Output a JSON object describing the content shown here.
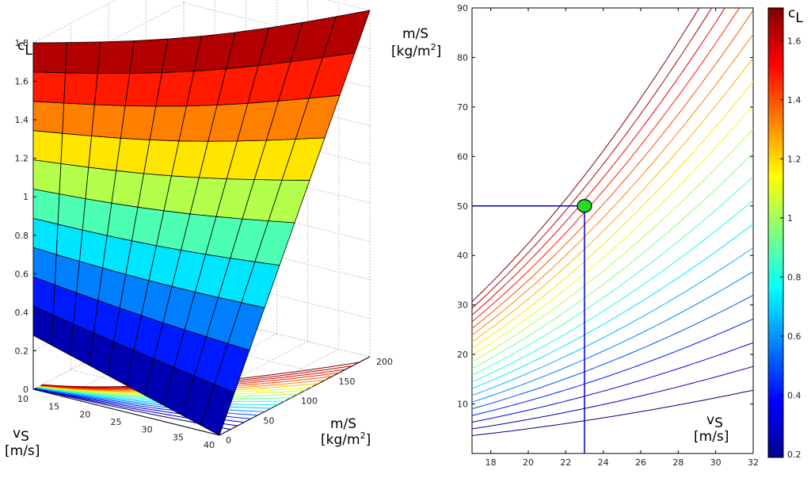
{
  "chart_data": [
    {
      "type": "surface",
      "zlabel_main": "c",
      "zlabel_sub": "L",
      "xlabel_line1": "v",
      "xlabel_line1_sub": "S",
      "xlabel_line2": "[m/s]",
      "ylabel_line1": "m/S",
      "ylabel_line2": "[kg/m",
      "ylabel_line2_sup": "2",
      "ylabel_line2_end": "]",
      "x_range": [
        10,
        40
      ],
      "y_range": [
        0,
        200
      ],
      "z_range": [
        0,
        1.8
      ],
      "x_ticks": [
        "10",
        "15",
        "20",
        "25",
        "30",
        "35",
        "40"
      ],
      "y_ticks": [
        "0",
        "50",
        "100",
        "150",
        "200"
      ],
      "z_ticks": [
        "0",
        "0.2",
        "0.4",
        "0.6",
        "0.8",
        "1",
        "1.2",
        "1.4",
        "1.6",
        "1.8"
      ],
      "surface_bands": 10,
      "surface_columns": 10,
      "colormap": "jet",
      "grid": true
    },
    {
      "type": "contour",
      "ylabel_line1": "m/S",
      "ylabel_line2": "[kg/m",
      "ylabel_line2_sup": "2",
      "ylabel_line2_end": "]",
      "xlabel_line1": "v",
      "xlabel_line1_sub": "S",
      "xlabel_line2": "[m/s]",
      "xlim": [
        17,
        32
      ],
      "ylim": [
        0,
        90
      ],
      "x_ticks": [
        "18",
        "20",
        "22",
        "24",
        "26",
        "28",
        "30",
        "32"
      ],
      "y_ticks": [
        "10",
        "20",
        "30",
        "40",
        "50",
        "60",
        "70",
        "80",
        "90"
      ],
      "cl_levels": [
        0.2,
        0.275,
        0.35,
        0.425,
        0.5,
        0.575,
        0.65,
        0.725,
        0.8,
        0.875,
        0.95,
        1.025,
        1.1,
        1.175,
        1.25,
        1.325,
        1.4,
        1.475,
        1.55,
        1.625,
        1.7
      ],
      "marker": {
        "x": 23,
        "y": 50
      },
      "marker_color": "#22dd22",
      "guide_color": "#0000cc",
      "grid": false
    },
    {
      "type": "colorbar",
      "label_main": "c",
      "label_sub": "L",
      "range": [
        0.2,
        1.7
      ],
      "ticks": [
        "0.2",
        "0.4",
        "0.6",
        "0.8",
        "1",
        "1.2",
        "1.4",
        "1.6"
      ],
      "colormap": "jet"
    }
  ]
}
